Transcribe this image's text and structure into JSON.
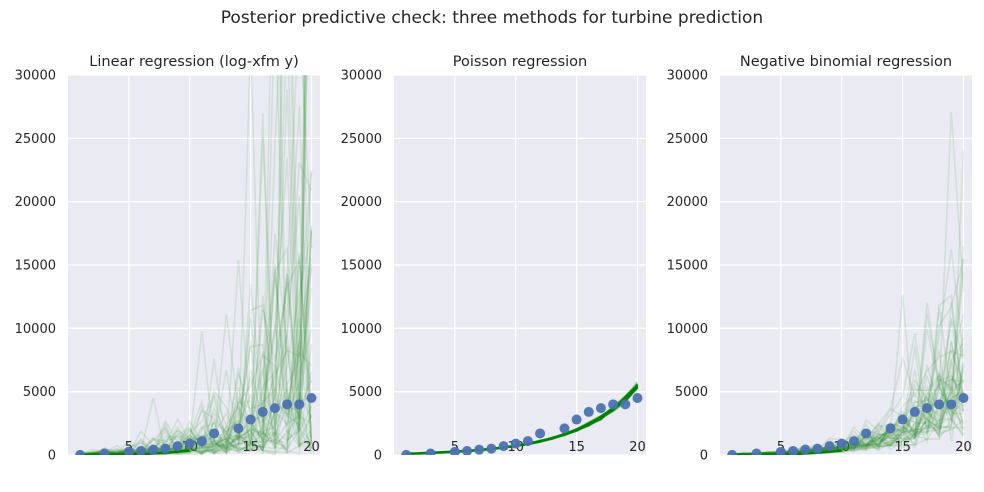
{
  "figure": {
    "suptitle": "Posterior predictive check: three methods for turbine prediction"
  },
  "chart_data": [
    {
      "type": "line",
      "title": "Linear regression (log-xfm y)",
      "xlabel": "",
      "ylabel": "",
      "xlim": [
        0,
        20.7
      ],
      "ylim": [
        0,
        30000
      ],
      "xticks": [
        5,
        10,
        15,
        20
      ],
      "yticks": [
        0,
        5000,
        10000,
        15000,
        20000,
        25000,
        30000
      ],
      "grid": true,
      "observed": {
        "x": [
          1,
          3,
          5,
          6,
          7,
          8,
          9,
          10,
          11,
          12,
          14,
          15,
          16,
          17,
          18,
          19,
          20
        ],
        "y": [
          10,
          120,
          250,
          320,
          420,
          500,
          700,
          900,
          1100,
          1700,
          2100,
          2800,
          3400,
          3700,
          4000,
          4000,
          4500
        ],
        "color": "#4c72b0"
      },
      "posterior_samples": {
        "count": 50,
        "color": "#2a8a2a",
        "opacity": 0.12,
        "median": [
          70,
          90,
          110,
          140,
          180,
          220,
          280,
          350,
          440,
          560,
          700,
          880,
          1100,
          1400,
          1750,
          2200,
          2800,
          3500,
          4400,
          5500
        ],
        "log_spread": [
          0.55,
          0.6,
          0.65,
          0.7,
          0.75,
          0.8,
          0.85,
          0.9,
          0.95,
          1.0,
          1.05,
          1.1,
          1.15,
          1.2,
          1.25,
          1.3,
          1.35,
          1.4,
          1.45,
          1.5
        ]
      },
      "mean_line": {
        "color": "#008000",
        "x": [
          1,
          2,
          3,
          4,
          5,
          6,
          7,
          8,
          9,
          10
        ],
        "y": [
          5,
          10,
          20,
          30,
          50,
          80,
          120,
          180,
          260,
          350
        ]
      }
    },
    {
      "type": "line",
      "title": "Poisson regression",
      "xlabel": "",
      "ylabel": "",
      "xlim": [
        0,
        20.7
      ],
      "ylim": [
        0,
        30000
      ],
      "xticks": [
        5,
        10,
        15,
        20
      ],
      "yticks": [
        0,
        5000,
        10000,
        15000,
        20000,
        25000,
        30000
      ],
      "grid": true,
      "observed": {
        "x": [
          1,
          3,
          5,
          6,
          7,
          8,
          9,
          10,
          11,
          12,
          14,
          15,
          16,
          17,
          18,
          19,
          20
        ],
        "y": [
          10,
          120,
          250,
          320,
          420,
          500,
          700,
          900,
          1100,
          1700,
          2100,
          2800,
          3400,
          3700,
          4000,
          4000,
          4500
        ],
        "color": "#4c72b0"
      },
      "posterior_samples": {
        "count": 30,
        "color": "#008000",
        "opacity": 0.35,
        "median": [
          100,
          130,
          170,
          210,
          260,
          320,
          390,
          480,
          590,
          720,
          880,
          1080,
          1320,
          1620,
          1980,
          2420,
          2960,
          3620,
          4430,
          5430
        ],
        "log_spread": [
          0.03,
          0.03,
          0.03,
          0.03,
          0.03,
          0.03,
          0.03,
          0.03,
          0.03,
          0.03,
          0.03,
          0.03,
          0.03,
          0.03,
          0.03,
          0.03,
          0.03,
          0.03,
          0.03,
          0.03
        ]
      },
      "mean_line": {
        "color": "#008000",
        "x": [
          1,
          2,
          3,
          4,
          5,
          6,
          7,
          8,
          9,
          10,
          11,
          12,
          13,
          14,
          15,
          16,
          17,
          18,
          19,
          20
        ],
        "y": [
          100,
          130,
          170,
          210,
          260,
          320,
          390,
          480,
          590,
          720,
          880,
          1080,
          1320,
          1620,
          1980,
          2420,
          2960,
          3620,
          4430,
          5430
        ]
      }
    },
    {
      "type": "line",
      "title": "Negative binomial regression",
      "xlabel": "",
      "ylabel": "",
      "xlim": [
        0,
        20.7
      ],
      "ylim": [
        0,
        30000
      ],
      "xticks": [
        5,
        10,
        15,
        20
      ],
      "yticks": [
        0,
        5000,
        10000,
        15000,
        20000,
        25000,
        30000
      ],
      "grid": true,
      "observed": {
        "x": [
          1,
          3,
          5,
          6,
          7,
          8,
          9,
          10,
          11,
          12,
          14,
          15,
          16,
          17,
          18,
          19,
          20
        ],
        "y": [
          10,
          120,
          250,
          320,
          420,
          500,
          700,
          900,
          1100,
          1700,
          2100,
          2800,
          3400,
          3700,
          4000,
          4000,
          4500
        ],
        "color": "#4c72b0"
      },
      "posterior_samples": {
        "count": 50,
        "color": "#2a8a2a",
        "opacity": 0.12,
        "median": [
          60,
          80,
          100,
          130,
          170,
          220,
          280,
          360,
          460,
          580,
          740,
          940,
          1200,
          1520,
          1930,
          2450,
          3100,
          3900,
          4900,
          6100
        ],
        "log_spread": [
          0.3,
          0.3,
          0.32,
          0.34,
          0.36,
          0.38,
          0.4,
          0.42,
          0.44,
          0.46,
          0.48,
          0.5,
          0.52,
          0.54,
          0.56,
          0.58,
          0.6,
          0.62,
          0.64,
          0.66
        ]
      },
      "mean_line": {
        "color": "#008000",
        "x": [
          1,
          2,
          3,
          4,
          5,
          6,
          7,
          8,
          9,
          10
        ],
        "y": [
          5,
          10,
          20,
          30,
          50,
          80,
          120,
          180,
          260,
          350
        ]
      }
    }
  ]
}
